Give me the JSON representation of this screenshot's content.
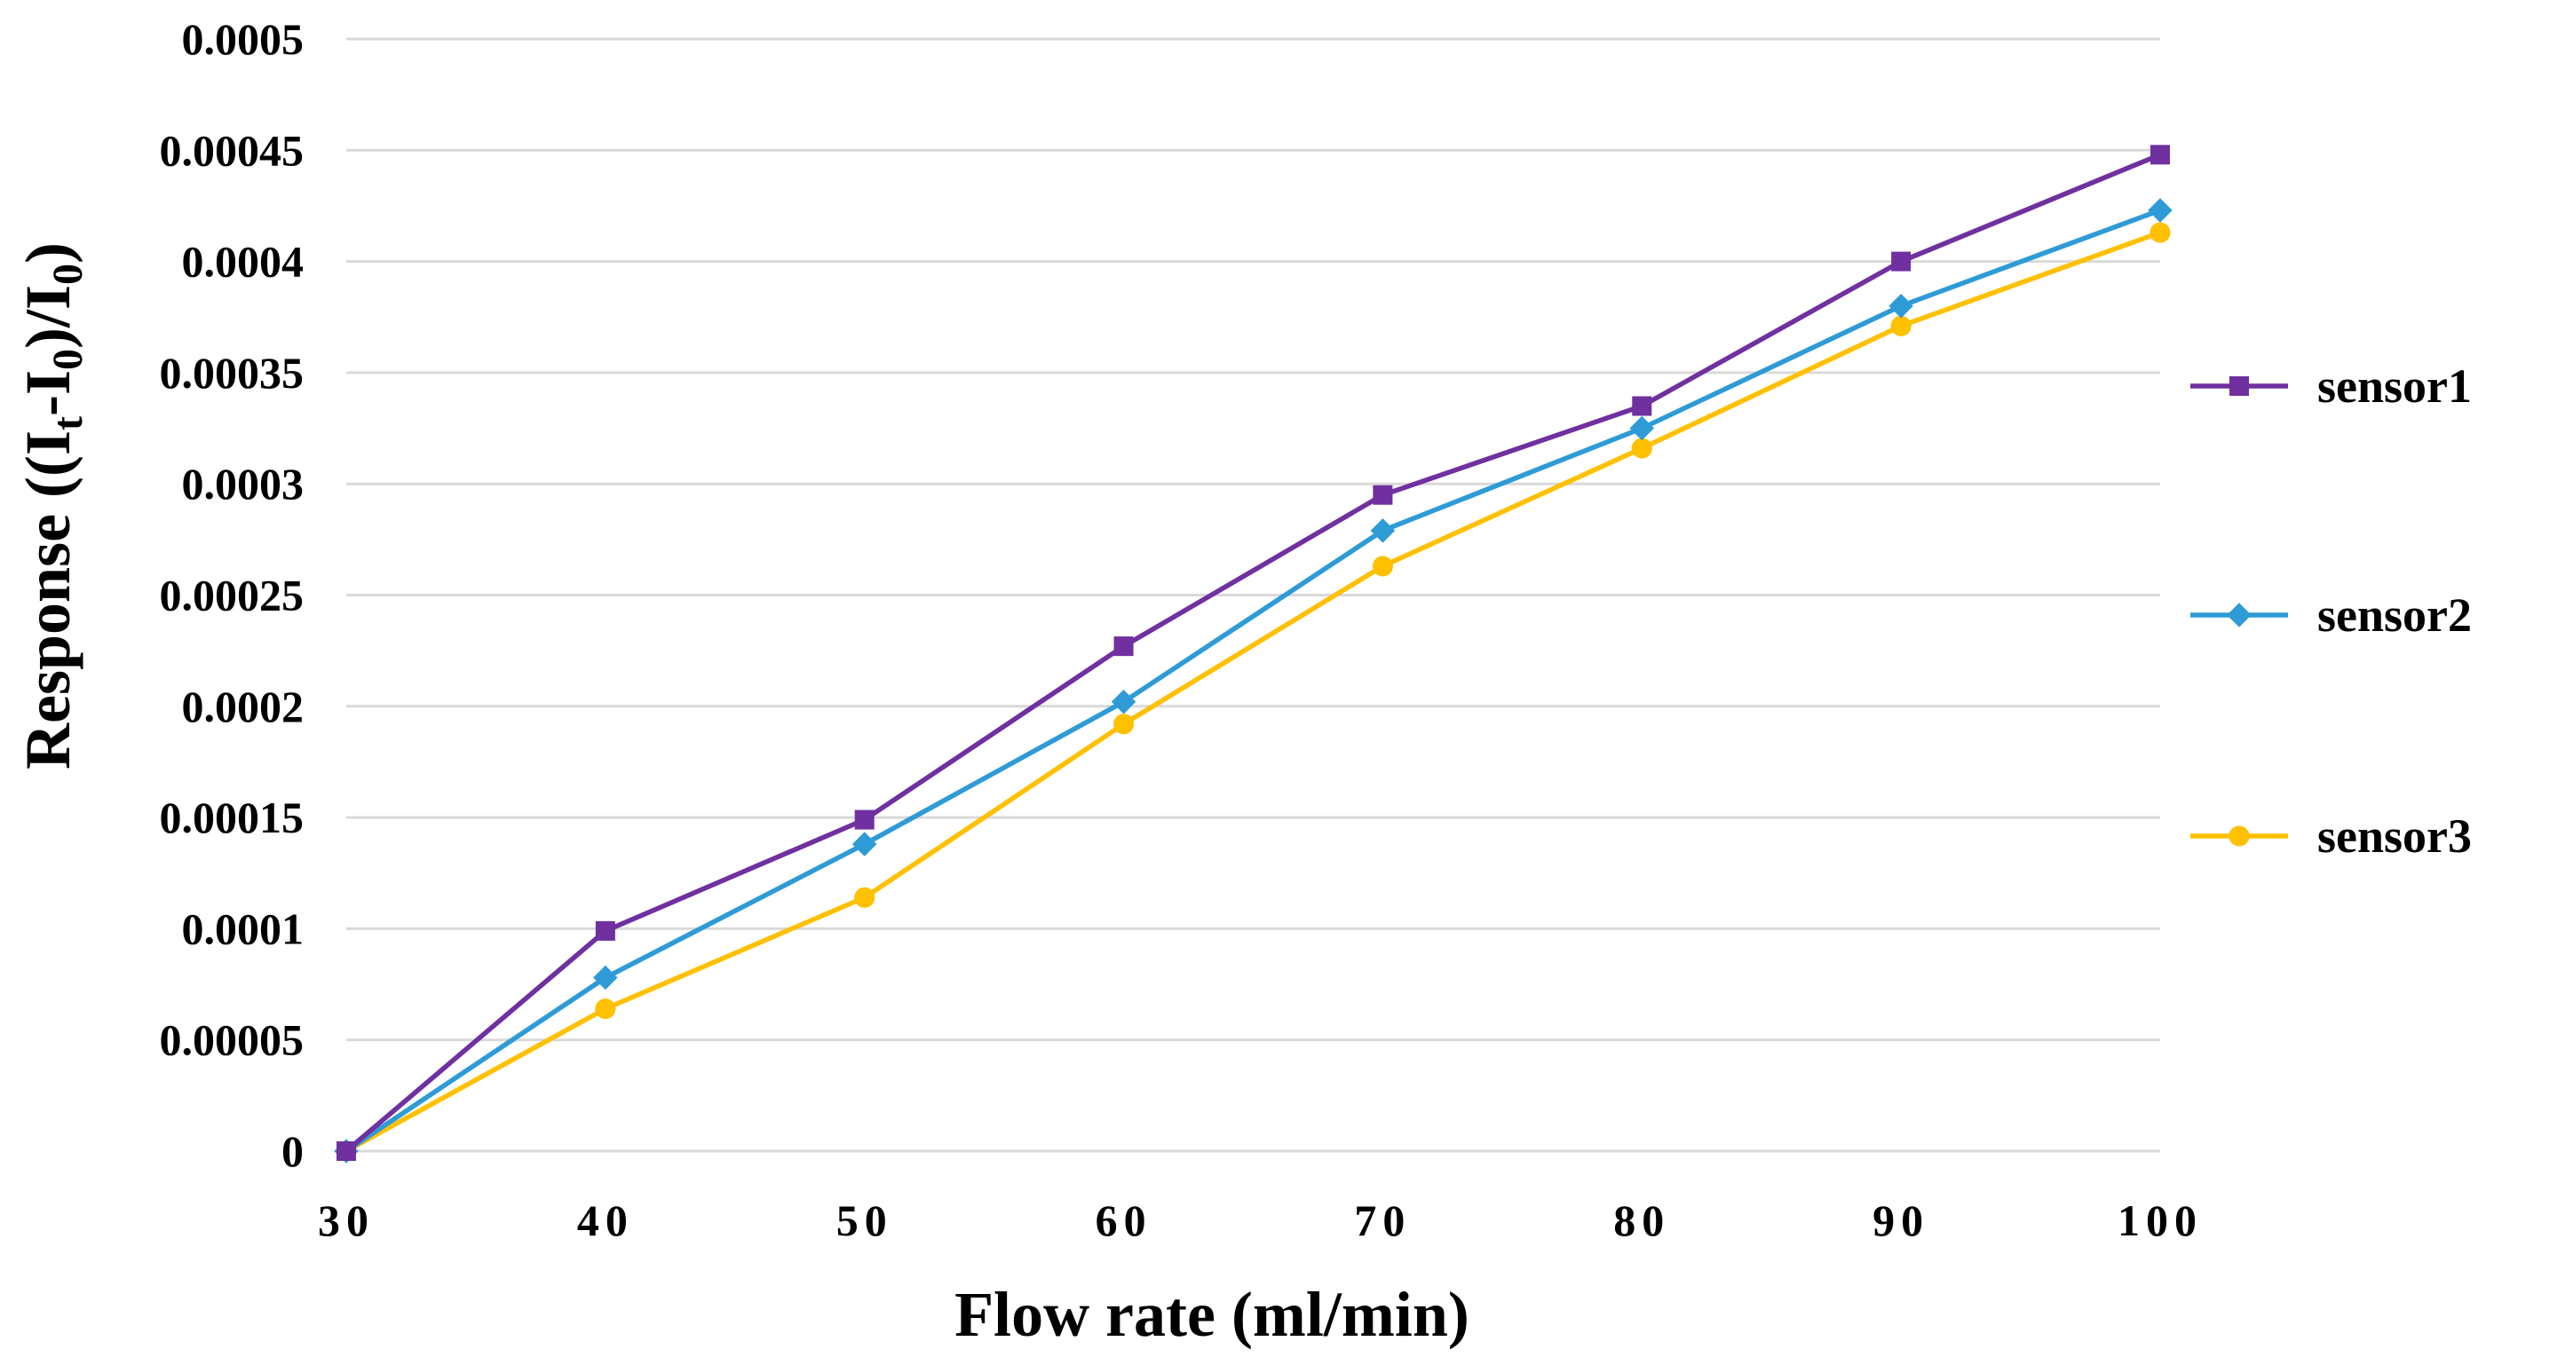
{
  "chart_data": {
    "type": "line",
    "title": "",
    "xlabel": "Flow rate (ml/min)",
    "ylabel": {
      "prefix": "Response ((I",
      "sub1": "t",
      "mid1": "-I",
      "sub2": "0",
      "mid2": ")/I",
      "sub3": "0",
      "suffix": ")"
    },
    "x": [
      30,
      40,
      50,
      60,
      70,
      80,
      90,
      100
    ],
    "x_tick_labels": [
      "30",
      "40",
      "50",
      "60",
      "70",
      "80",
      "90",
      "100"
    ],
    "xlim": [
      30,
      100
    ],
    "ylim": [
      0,
      0.0005
    ],
    "y_ticks": [
      0,
      5e-05,
      0.0001,
      0.00015,
      0.0002,
      0.00025,
      0.0003,
      0.00035,
      0.0004,
      0.00045,
      0.0005
    ],
    "y_tick_labels": [
      "0",
      "0.00005",
      "0.0001",
      "0.00015",
      "0.0002",
      "0.00025",
      "0.0003",
      "0.00035",
      "0.0004",
      "0.00045",
      "0.0005"
    ],
    "grid": true,
    "legend_position": "right",
    "series": [
      {
        "name": "sensor1",
        "color": "#7030a0",
        "marker": "square",
        "values": [
          0,
          9.9e-05,
          0.000149,
          0.000227,
          0.000295,
          0.000335,
          0.0004,
          0.000448
        ]
      },
      {
        "name": "sensor2",
        "color": "#2e9bd6",
        "marker": "diamond",
        "values": [
          0,
          7.8e-05,
          0.000138,
          0.000202,
          0.000279,
          0.000325,
          0.00038,
          0.000423
        ]
      },
      {
        "name": "sensor3",
        "color": "#ffc000",
        "marker": "circle",
        "values": [
          0,
          6.4e-05,
          0.000114,
          0.000192,
          0.000263,
          0.000316,
          0.000371,
          0.000413
        ]
      }
    ]
  }
}
